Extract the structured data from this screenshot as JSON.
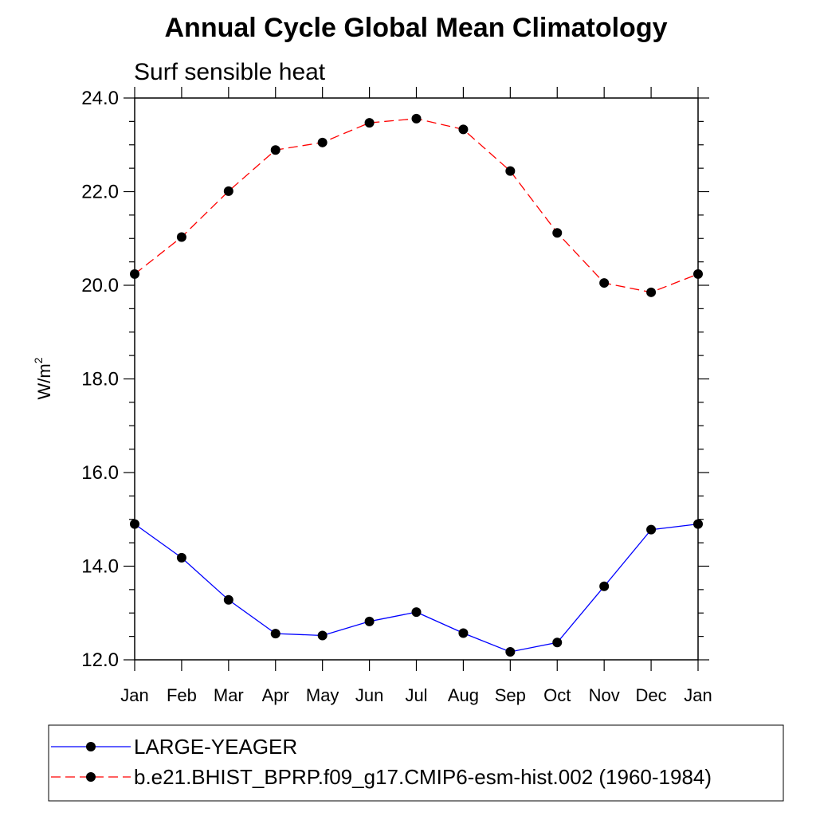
{
  "chart_data": {
    "type": "line",
    "title": "Annual Cycle Global Mean Climatology",
    "subtitle": "Surf sensible heat",
    "ylabel": "W/m",
    "ylabel_superscript": "2",
    "ylim": [
      12.0,
      24.0
    ],
    "yticks": [
      "12.0",
      "14.0",
      "16.0",
      "18.0",
      "20.0",
      "22.0",
      "24.0"
    ],
    "categories": [
      "Jan",
      "Feb",
      "Mar",
      "Apr",
      "May",
      "Jun",
      "Jul",
      "Aug",
      "Sep",
      "Oct",
      "Nov",
      "Dec",
      "Jan"
    ],
    "grid": false,
    "legend_position": "bottom",
    "series": [
      {
        "name": "LARGE-YEAGER",
        "color": "#0000ff",
        "dashed": false,
        "values": [
          14.9,
          14.18,
          13.28,
          12.56,
          12.52,
          12.82,
          13.02,
          12.57,
          12.17,
          12.37,
          13.57,
          14.78,
          14.9
        ]
      },
      {
        "name": "b.e21.BHIST_BPRP.f09_g17.CMIP6-esm-hist.002 (1960-1984)",
        "color": "#ff0000",
        "dashed": true,
        "values": [
          20.24,
          21.03,
          22.01,
          22.89,
          23.05,
          23.47,
          23.56,
          23.33,
          22.44,
          21.12,
          20.05,
          19.85,
          20.24
        ]
      }
    ]
  }
}
